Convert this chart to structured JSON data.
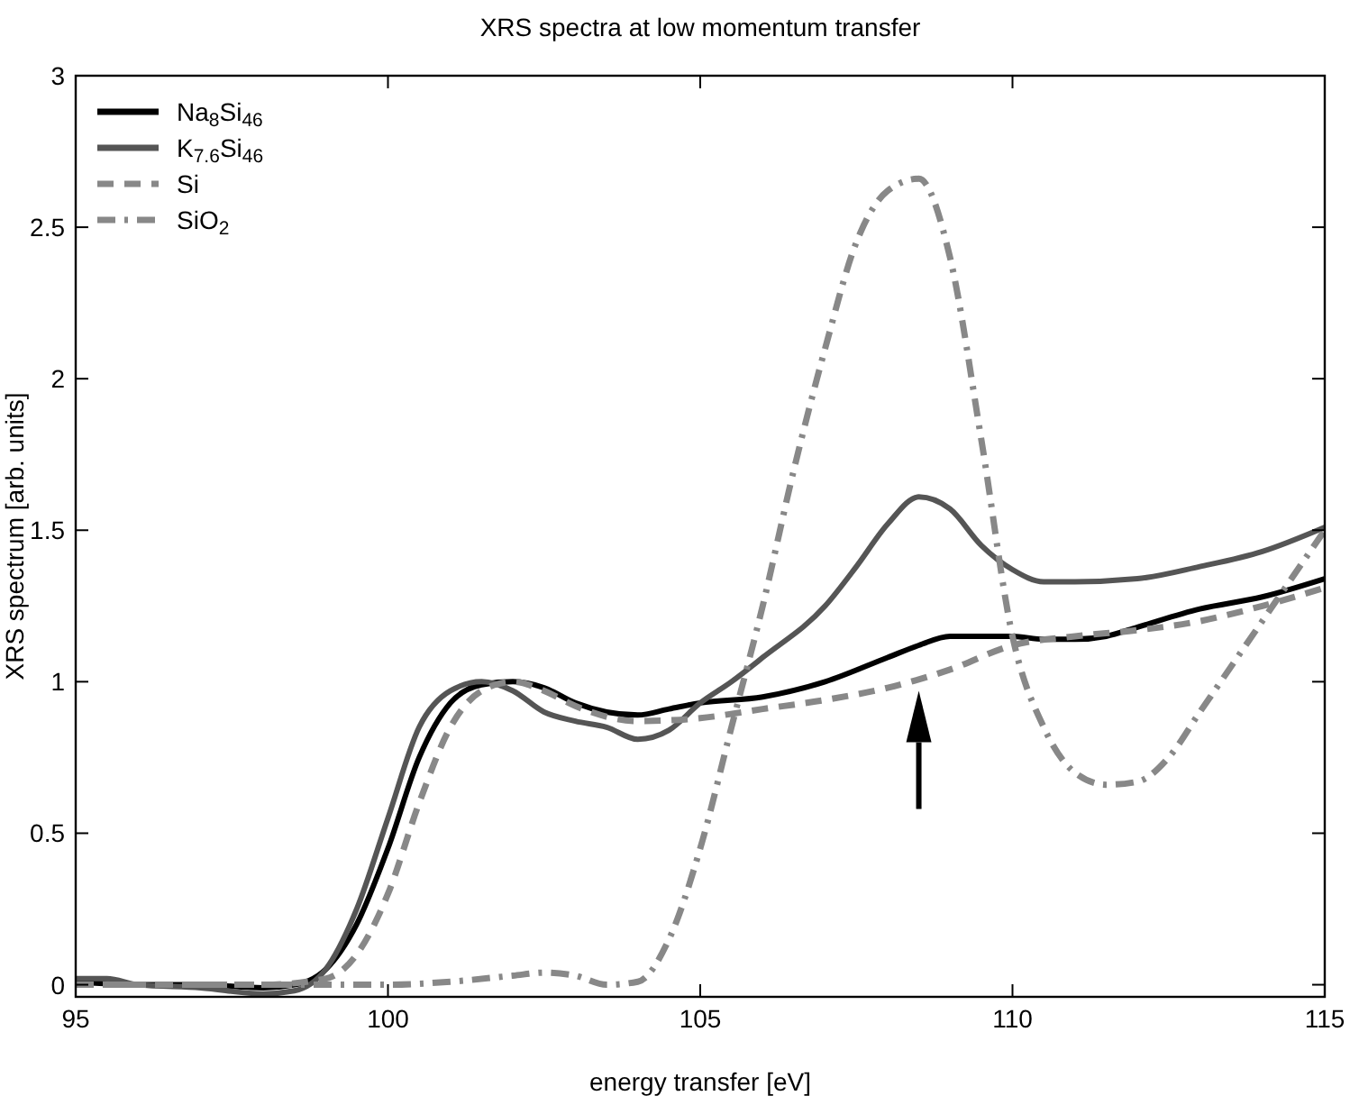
{
  "chart_data": {
    "type": "line",
    "title": "XRS spectra at low momentum transfer",
    "xlabel": "energy transfer [eV]",
    "ylabel": "XRS spectrum [arb. units]",
    "xlim": [
      95,
      115
    ],
    "xticks": [
      95,
      100,
      105,
      110,
      115
    ],
    "ylim": [
      -0.04,
      3
    ],
    "yticks": [
      0,
      0.5,
      1,
      1.5,
      2,
      2.5,
      3
    ],
    "grid": false,
    "legend": "top left",
    "series": [
      {
        "name": "Na$_{8}$Si$_{46}$",
        "color": "#000000",
        "line_style": "solid",
        "x": [
          95,
          96,
          97,
          98,
          98.5,
          99,
          99.5,
          100,
          100.5,
          101,
          101.5,
          102,
          102.5,
          103,
          103.5,
          104,
          104.5,
          105,
          106,
          107,
          108,
          108.5,
          109,
          110,
          110.5,
          111,
          111.5,
          112,
          113,
          114,
          115
        ],
        "values": [
          0.01,
          0,
          0,
          -0.01,
          0,
          0.05,
          0.2,
          0.45,
          0.75,
          0.93,
          0.99,
          1,
          0.98,
          0.93,
          0.9,
          0.89,
          0.91,
          0.93,
          0.95,
          1,
          1.08,
          1.12,
          1.15,
          1.15,
          1.14,
          1.14,
          1.15,
          1.18,
          1.24,
          1.28,
          1.34
        ]
      },
      {
        "name": "K$_{7.6}$Si$_{46}$",
        "color": "#555555",
        "line_style": "solid",
        "x": [
          95,
          95.5,
          96,
          97,
          98,
          98.5,
          99,
          99.5,
          100,
          100.5,
          101,
          101.5,
          102,
          102.5,
          103,
          103.5,
          104,
          104.5,
          105,
          105.5,
          106,
          107,
          107.5,
          108,
          108.5,
          109,
          109.5,
          110,
          110.5,
          111,
          112,
          113,
          114,
          115
        ],
        "values": [
          0.02,
          0.02,
          0,
          -0.01,
          -0.03,
          -0.02,
          0.05,
          0.25,
          0.55,
          0.85,
          0.97,
          1,
          0.97,
          0.9,
          0.87,
          0.85,
          0.81,
          0.84,
          0.93,
          1,
          1.08,
          1.25,
          1.38,
          1.52,
          1.61,
          1.57,
          1.45,
          1.37,
          1.33,
          1.33,
          1.34,
          1.38,
          1.43,
          1.51
        ]
      },
      {
        "name": "Si",
        "color": "#888888",
        "line_style": "dashed",
        "x": [
          95,
          97,
          98,
          99,
          99.5,
          100,
          100.5,
          101,
          101.5,
          102,
          102.5,
          103,
          104,
          105,
          106,
          107,
          108,
          109,
          110,
          111,
          112,
          113,
          114,
          115
        ],
        "values": [
          0,
          0,
          0,
          0.02,
          0.1,
          0.3,
          0.6,
          0.85,
          0.97,
          1,
          0.97,
          0.92,
          0.87,
          0.88,
          0.91,
          0.94,
          0.98,
          1.04,
          1.12,
          1.15,
          1.17,
          1.2,
          1.25,
          1.31
        ]
      },
      {
        "name": "SiO$_{2}$",
        "color": "#888888",
        "line_style": "dashdot",
        "x": [
          95,
          100,
          101,
          102,
          102.5,
          103,
          103.5,
          104,
          104.5,
          105,
          105.5,
          106,
          106.5,
          107,
          107.5,
          108,
          108.5,
          109,
          109.5,
          110,
          110.5,
          111,
          111.5,
          112,
          112.5,
          113,
          114,
          115
        ],
        "values": [
          0,
          0,
          0.01,
          0.03,
          0.04,
          0.03,
          0,
          0.01,
          0.15,
          0.45,
          0.85,
          1.25,
          1.7,
          2.1,
          2.45,
          2.62,
          2.66,
          2.4,
          1.8,
          1.15,
          0.85,
          0.7,
          0.66,
          0.67,
          0.75,
          0.9,
          1.2,
          1.5
        ]
      }
    ]
  }
}
